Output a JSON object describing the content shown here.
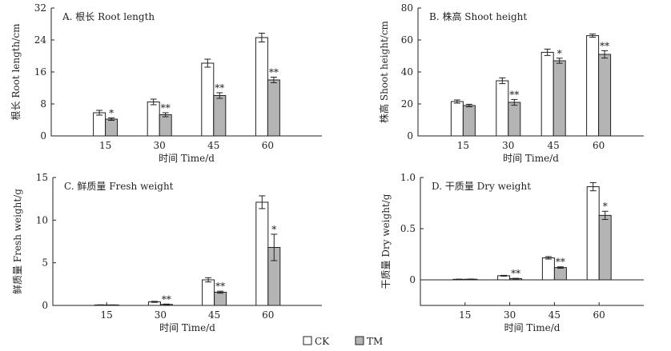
{
  "chart_data": [
    {
      "type": "bar",
      "title": "A. 根长 Root length",
      "xlabel": "时间 Time/d",
      "ylabel": "根长 Root length/cm",
      "categories": [
        "15",
        "30",
        "45",
        "60"
      ],
      "ylim": [
        0,
        32
      ],
      "yticks": [
        "0",
        "8",
        "16",
        "24",
        "32"
      ],
      "series": [
        {
          "name": "CK",
          "values": [
            5.8,
            8.5,
            18.2,
            24.6
          ],
          "errors": [
            0.6,
            0.7,
            1.0,
            1.1
          ],
          "sig": [
            "",
            "",
            "",
            ""
          ]
        },
        {
          "name": "TM",
          "values": [
            4.2,
            5.3,
            10.1,
            14.0
          ],
          "errors": [
            0.3,
            0.5,
            0.7,
            0.7
          ],
          "sig": [
            "*",
            "**",
            "**",
            "**"
          ]
        }
      ]
    },
    {
      "type": "bar",
      "title": "B. 株高 Shoot height",
      "xlabel": "时间 Time/d",
      "ylabel": "株高 Shoot height/cm",
      "categories": [
        "15",
        "30",
        "45",
        "60"
      ],
      "ylim": [
        0,
        80
      ],
      "yticks": [
        "0",
        "20",
        "40",
        "60",
        "80"
      ],
      "series": [
        {
          "name": "CK",
          "values": [
            21.5,
            34.5,
            52.3,
            62.7
          ],
          "errors": [
            1.0,
            1.8,
            2.0,
            1.0
          ],
          "sig": [
            "",
            "",
            "",
            ""
          ]
        },
        {
          "name": "TM",
          "values": [
            19.0,
            21.0,
            47.0,
            51.0
          ],
          "errors": [
            0.8,
            1.8,
            1.6,
            2.3
          ],
          "sig": [
            "",
            "**",
            "*",
            "**"
          ]
        }
      ]
    },
    {
      "type": "bar",
      "title": "C. 鲜质量 Fresh weight",
      "xlabel": "时间 Time/d",
      "ylabel": "鲜质量 Fresh weight/g",
      "categories": [
        "15",
        "30",
        "45",
        "60"
      ],
      "ylim": [
        0,
        15
      ],
      "yticks": [
        "0",
        "5",
        "10",
        "15"
      ],
      "series": [
        {
          "name": "CK",
          "values": [
            0.05,
            0.42,
            3.0,
            12.1
          ],
          "errors": [
            0.02,
            0.06,
            0.25,
            0.75
          ],
          "sig": [
            "",
            "",
            "",
            ""
          ]
        },
        {
          "name": "TM",
          "values": [
            0.04,
            0.12,
            1.55,
            6.8
          ],
          "errors": [
            0.02,
            0.04,
            0.12,
            1.55
          ],
          "sig": [
            "",
            "**",
            "**",
            "*"
          ]
        }
      ]
    },
    {
      "type": "bar",
      "title": "D. 干质量 Dry weight",
      "xlabel": "时间 Time/d",
      "ylabel": "干质量 Dry weight/g",
      "categories": [
        "15",
        "30",
        "45",
        "60"
      ],
      "ylim": [
        -0.25,
        1.0
      ],
      "yticks": [
        "0",
        "0.5",
        "1.0"
      ],
      "series": [
        {
          "name": "CK",
          "values": [
            0.005,
            0.04,
            0.215,
            0.91
          ],
          "errors": [
            0.002,
            0.004,
            0.012,
            0.04
          ],
          "sig": [
            "",
            "",
            "",
            ""
          ]
        },
        {
          "name": "TM",
          "values": [
            0.006,
            0.012,
            0.12,
            0.63
          ],
          "errors": [
            0.002,
            0.003,
            0.007,
            0.04
          ],
          "sig": [
            "",
            "**",
            "**",
            "*"
          ]
        }
      ]
    }
  ],
  "legend": {
    "placement": "bottom-center",
    "items": [
      {
        "label": "CK",
        "color": "#ffffff"
      },
      {
        "label": "TM",
        "color": "#b4b4b4"
      }
    ]
  }
}
